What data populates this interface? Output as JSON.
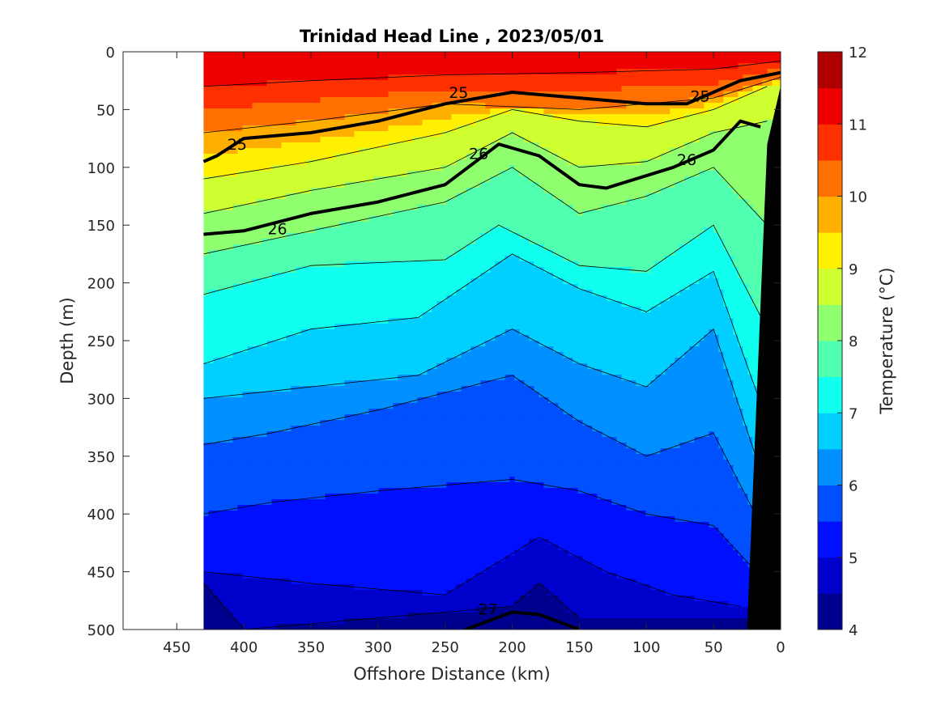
{
  "chart_data": {
    "type": "heatmap",
    "title": "Trinidad Head Line , 2023/05/01",
    "xlabel": "Offshore Distance (km)",
    "ylabel": "Depth (m)",
    "colorbar_label": "Temperature (°C)",
    "x_reversed": true,
    "xlim": [
      490,
      0
    ],
    "ylim": [
      0,
      500
    ],
    "y_reversed": true,
    "x_ticks": [
      450,
      400,
      350,
      300,
      250,
      200,
      150,
      100,
      50,
      0
    ],
    "y_ticks": [
      0,
      50,
      100,
      150,
      200,
      250,
      300,
      350,
      400,
      450,
      500
    ],
    "colorbar": {
      "range": [
        4,
        12
      ],
      "ticks": [
        4,
        5,
        6,
        7,
        8,
        9,
        10,
        11,
        12
      ],
      "levels": [
        4,
        4.5,
        5,
        5.5,
        6,
        6.5,
        7,
        7.5,
        8,
        8.5,
        9,
        9.5,
        10,
        10.5,
        11,
        11.5,
        12
      ],
      "colors": [
        "#00008f",
        "#0000cc",
        "#0010ff",
        "#0050ff",
        "#0090ff",
        "#00cfff",
        "#10ffef",
        "#50ffaf",
        "#90ff6f",
        "#cfff30",
        "#ffef00",
        "#ffaf00",
        "#ff7000",
        "#ff3000",
        "#ef0000",
        "#af0000"
      ]
    },
    "data_extent_x": [
      430,
      0
    ],
    "isotherms": [
      {
        "level": 11,
        "x": [
          430,
          350,
          250,
          150,
          50,
          0
        ],
        "depth": [
          30,
          25,
          20,
          18,
          15,
          8
        ]
      },
      {
        "level": 10,
        "x": [
          430,
          350,
          250,
          150,
          50,
          0
        ],
        "depth": [
          70,
          60,
          45,
          50,
          40,
          22
        ]
      },
      {
        "level": 9,
        "x": [
          430,
          350,
          250,
          200,
          150,
          100,
          50,
          10
        ],
        "depth": [
          110,
          95,
          70,
          50,
          60,
          65,
          50,
          30
        ]
      },
      {
        "level": 8.5,
        "x": [
          430,
          350,
          250,
          200,
          150,
          100,
          50,
          10
        ],
        "depth": [
          140,
          120,
          100,
          70,
          100,
          95,
          70,
          60
        ]
      },
      {
        "level": 8,
        "x": [
          430,
          350,
          250,
          200,
          150,
          100,
          50,
          10
        ],
        "depth": [
          175,
          155,
          130,
          100,
          140,
          125,
          100,
          150
        ]
      },
      {
        "level": 7.5,
        "x": [
          430,
          350,
          250,
          210,
          150,
          100,
          50,
          10
        ],
        "depth": [
          210,
          185,
          180,
          150,
          185,
          190,
          150,
          240
        ]
      },
      {
        "level": 7,
        "x": [
          430,
          350,
          270,
          200,
          150,
          100,
          50,
          10
        ],
        "depth": [
          270,
          240,
          230,
          175,
          205,
          225,
          190,
          320
        ]
      },
      {
        "level": 6.5,
        "x": [
          430,
          350,
          270,
          200,
          150,
          100,
          50,
          10
        ],
        "depth": [
          300,
          290,
          280,
          240,
          270,
          290,
          240,
          380
        ]
      },
      {
        "level": 6,
        "x": [
          430,
          380,
          300,
          200,
          150,
          100,
          50,
          10
        ],
        "depth": [
          340,
          330,
          310,
          280,
          320,
          350,
          330,
          420
        ]
      },
      {
        "level": 5.5,
        "x": [
          430,
          380,
          300,
          200,
          150,
          100,
          50,
          10
        ],
        "depth": [
          400,
          390,
          380,
          370,
          380,
          400,
          410,
          460
        ]
      },
      {
        "level": 5,
        "x": [
          430,
          350,
          250,
          180,
          130,
          80,
          30
        ],
        "depth": [
          450,
          460,
          470,
          420,
          450,
          470,
          480
        ]
      },
      {
        "level": 4.5,
        "x": [
          430,
          400,
          200,
          180,
          150
        ],
        "depth": [
          460,
          500,
          480,
          460,
          490
        ]
      }
    ],
    "density_contours": [
      {
        "level": 25,
        "label": "25",
        "x": [
          430,
          420,
          400,
          350,
          300,
          250,
          200,
          150,
          100,
          70,
          30,
          0
        ],
        "depth": [
          95,
          90,
          75,
          70,
          60,
          45,
          35,
          40,
          45,
          45,
          25,
          18
        ]
      },
      {
        "level": 26,
        "label": "26",
        "x": [
          430,
          400,
          350,
          300,
          250,
          210,
          180,
          150,
          130,
          80,
          50,
          30,
          15
        ],
        "depth": [
          158,
          155,
          140,
          130,
          115,
          80,
          90,
          115,
          118,
          100,
          85,
          60,
          65
        ]
      },
      {
        "level": 27,
        "label": "27",
        "x": [
          235,
          200,
          180,
          150
        ],
        "depth": [
          500,
          485,
          487,
          500
        ]
      }
    ],
    "contour_labels": [
      {
        "text": "25",
        "x": 405,
        "depth": 80
      },
      {
        "text": "25",
        "x": 240,
        "depth": 35
      },
      {
        "text": "25",
        "x": 60,
        "depth": 38
      },
      {
        "text": "26",
        "x": 375,
        "depth": 153
      },
      {
        "text": "26",
        "x": 225,
        "depth": 88
      },
      {
        "text": "26",
        "x": 70,
        "depth": 93
      },
      {
        "text": "27",
        "x": 218,
        "depth": 482
      }
    ],
    "bathymetry": {
      "x": [
        0,
        10,
        25,
        25,
        0
      ],
      "depth": [
        30,
        80,
        500,
        500,
        500
      ]
    },
    "colors": {
      "background": "#ffffff",
      "axis": "#262626",
      "bathymetry": "#000000",
      "contour": "#000000"
    }
  }
}
